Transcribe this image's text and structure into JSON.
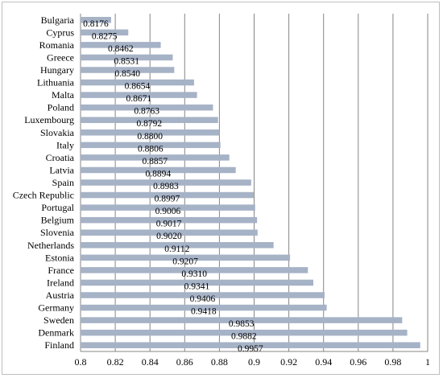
{
  "chart_data": {
    "type": "bar",
    "orientation": "horizontal",
    "categories": [
      "Bulgaria",
      "Cyprus",
      "Romania",
      "Greece",
      "Hungary",
      "Lithuania",
      "Malta",
      "Poland",
      "Luxembourg",
      "Slovakia",
      "Italy",
      "Croatia",
      "Latvia",
      "Spain",
      "Czech Republic",
      "Portugal",
      "Belgium",
      "Slovenia",
      "Netherlands",
      "Estonia",
      "France",
      "Ireland",
      "Austria",
      "Germany",
      "Sweden",
      "Denmark",
      "Finland"
    ],
    "values": [
      0.8176,
      0.8275,
      0.8462,
      0.8531,
      0.854,
      0.8654,
      0.8671,
      0.8763,
      0.8792,
      0.88,
      0.8806,
      0.8857,
      0.8894,
      0.8983,
      0.8997,
      0.9006,
      0.9017,
      0.902,
      0.9112,
      0.9207,
      0.931,
      0.9341,
      0.9406,
      0.9418,
      0.9853,
      0.9882,
      0.9957
    ],
    "data_labels": [
      "0.8176",
      "0.8275",
      "0.8462",
      "0.8531",
      "0.8540",
      "0.8654",
      "0.8671",
      "0.8763",
      "0.8792",
      "0.8800",
      "0.8806",
      "0.8857",
      "0.8894",
      "0.8983",
      "0.8997",
      "0.9006",
      "0.9017",
      "0.9020",
      "0.9112",
      "0.9207",
      "0.9310",
      "0.9341",
      "0.9406",
      "0.9418",
      "0.9853",
      "0.9882",
      "0.9957"
    ],
    "x_ticks": [
      "0.8",
      "0.82",
      "0.84",
      "0.86",
      "0.88",
      "0.9",
      "0.92",
      "0.94",
      "0.96",
      "0.98",
      "1"
    ],
    "xlim": [
      0.8,
      1.0
    ],
    "title": "",
    "xlabel": "",
    "ylabel": "",
    "grid": "vertical",
    "legend": "none",
    "bar_color": "#a6b2c6",
    "grid_color": "#868686"
  }
}
